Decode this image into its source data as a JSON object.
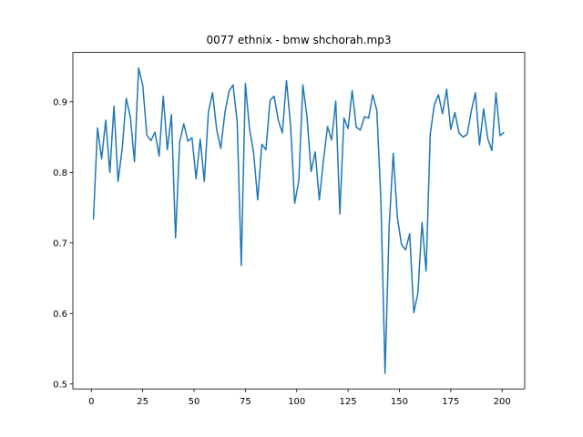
{
  "chart_data": {
    "type": "line",
    "title": "0077 ethnix - bmw shchorah.mp3",
    "x": [
      1,
      3,
      5,
      7,
      9,
      11,
      13,
      15,
      17,
      19,
      21,
      23,
      25,
      27,
      29,
      31,
      33,
      35,
      37,
      39,
      41,
      43,
      45,
      47,
      49,
      51,
      53,
      55,
      57,
      59,
      61,
      63,
      65,
      67,
      69,
      71,
      73,
      75,
      77,
      79,
      81,
      83,
      85,
      87,
      89,
      91,
      93,
      95,
      97,
      99,
      101,
      103,
      105,
      107,
      109,
      111,
      113,
      115,
      117,
      119,
      121,
      123,
      125,
      127,
      129,
      131,
      133,
      135,
      137,
      139,
      141,
      143,
      145,
      147,
      149,
      151,
      153,
      155,
      157,
      159,
      161,
      163,
      165,
      167,
      169,
      171,
      173,
      175,
      177,
      179,
      181,
      183,
      185,
      187,
      189,
      191,
      193,
      195,
      197,
      199,
      201
    ],
    "series": [
      {
        "color": "#1f77b4",
        "values": [
          0.733,
          0.863,
          0.819,
          0.874,
          0.8,
          0.894,
          0.787,
          0.833,
          0.905,
          0.878,
          0.815,
          0.948,
          0.924,
          0.853,
          0.845,
          0.857,
          0.823,
          0.908,
          0.832,
          0.882,
          0.707,
          0.843,
          0.869,
          0.844,
          0.849,
          0.791,
          0.847,
          0.787,
          0.886,
          0.913,
          0.861,
          0.834,
          0.884,
          0.915,
          0.924,
          0.872,
          0.668,
          0.926,
          0.862,
          0.828,
          0.761,
          0.84,
          0.832,
          0.902,
          0.908,
          0.874,
          0.856,
          0.93,
          0.867,
          0.756,
          0.788,
          0.924,
          0.879,
          0.801,
          0.829,
          0.761,
          0.817,
          0.865,
          0.846,
          0.901,
          0.741,
          0.877,
          0.862,
          0.916,
          0.864,
          0.86,
          0.879,
          0.877,
          0.91,
          0.888,
          0.76,
          0.515,
          0.723,
          0.827,
          0.736,
          0.698,
          0.69,
          0.713,
          0.601,
          0.629,
          0.729,
          0.66,
          0.854,
          0.896,
          0.91,
          0.883,
          0.918,
          0.861,
          0.885,
          0.856,
          0.85,
          0.854,
          0.887,
          0.913,
          0.839,
          0.89,
          0.848,
          0.831,
          0.913,
          0.852,
          0.857
        ]
      }
    ],
    "xlim": [
      -9,
      211
    ],
    "ylim": [
      0.493,
      0.97
    ],
    "xticks": [
      0,
      25,
      50,
      75,
      100,
      125,
      150,
      175,
      200
    ],
    "yticks": [
      0.5,
      0.6,
      0.7,
      0.8,
      0.9
    ]
  }
}
